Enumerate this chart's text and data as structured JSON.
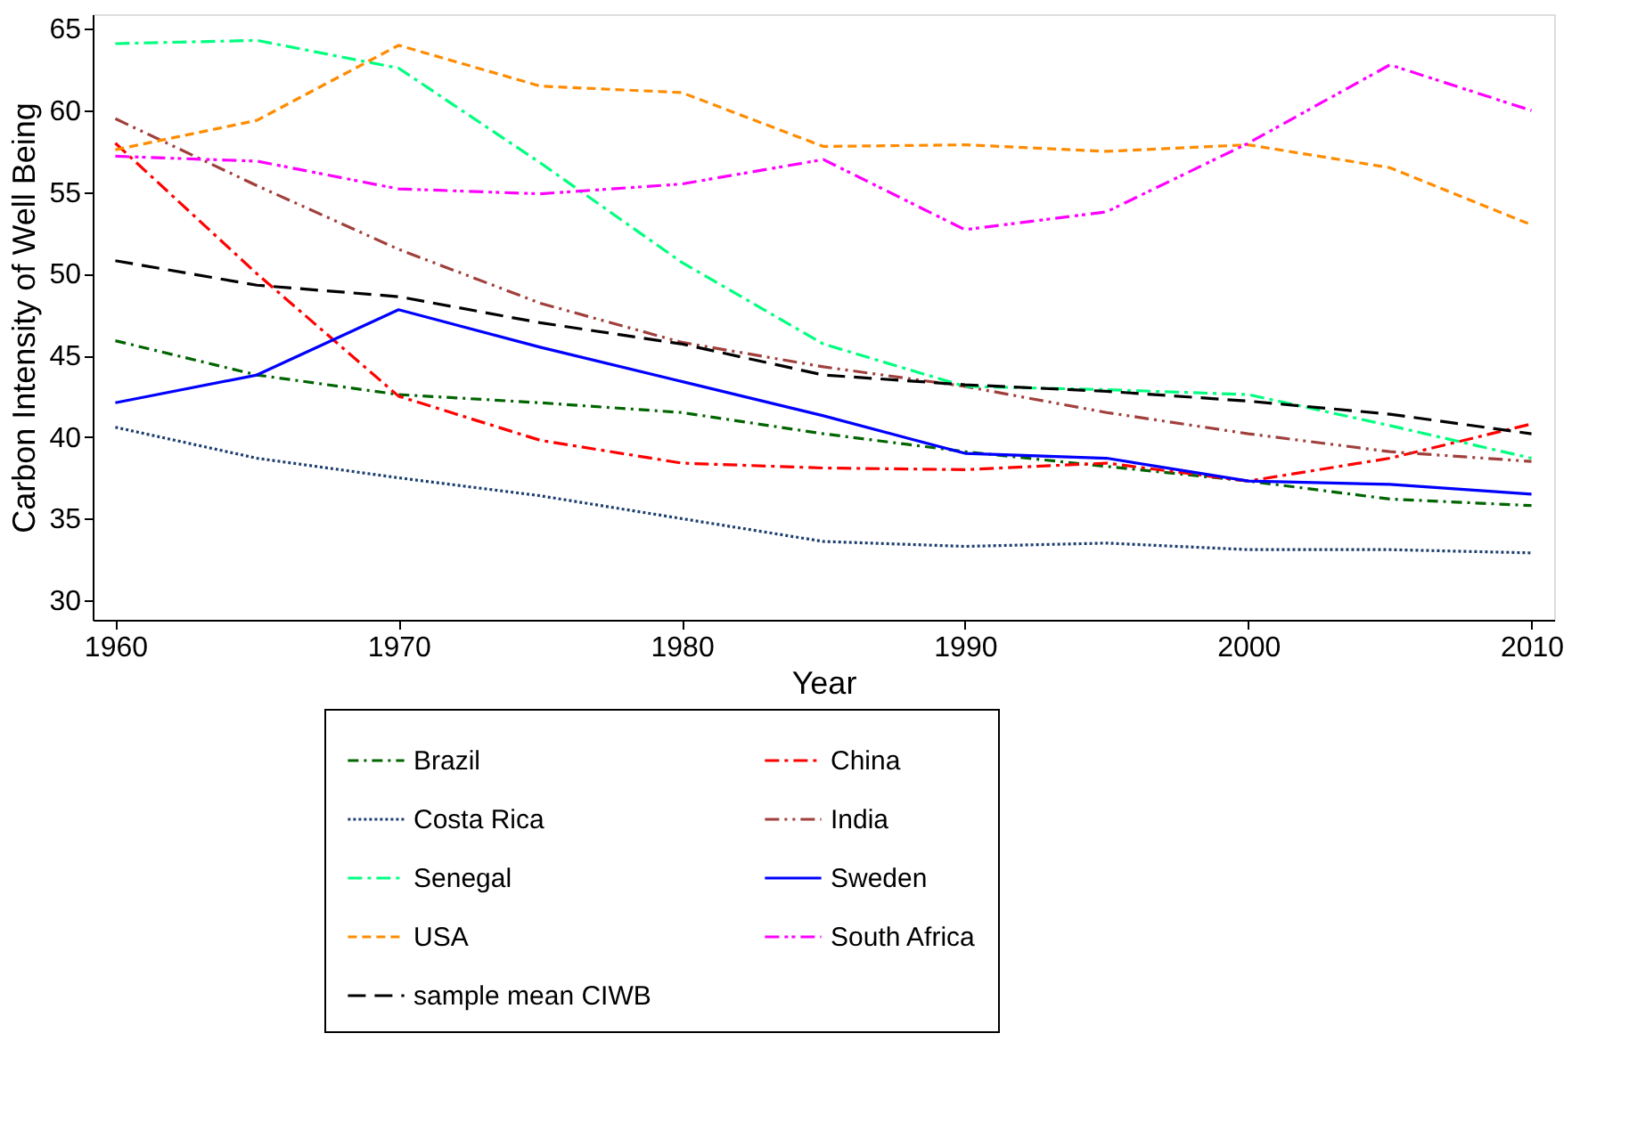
{
  "chart_data": {
    "type": "line",
    "xlabel": "Year",
    "ylabel": "Carbon Intensity of Well Being",
    "x": [
      1960,
      1965,
      1970,
      1975,
      1980,
      1985,
      1990,
      1995,
      2000,
      2005,
      2010
    ],
    "xlim": [
      1959.2,
      2010.8
    ],
    "xticks": [
      1960,
      1970,
      1980,
      1990,
      2000,
      2010
    ],
    "ylim": [
      28.8,
      65.9
    ],
    "yticks": [
      30,
      35,
      40,
      45,
      50,
      55,
      60,
      65
    ],
    "grid": false,
    "legend": "bottom",
    "marker": "none",
    "series": [
      {
        "name": "Brazil",
        "color": "#006400",
        "line_style": "dashdot",
        "values": [
          45.9,
          43.8,
          42.6,
          42.1,
          41.5,
          40.2,
          39.1,
          38.2,
          37.3,
          36.2,
          35.8
        ]
      },
      {
        "name": "China",
        "color": "#ff0000",
        "line_style": "longdashdot",
        "values": [
          58.0,
          50.0,
          42.5,
          39.8,
          38.4,
          38.1,
          38.0,
          38.4,
          37.3,
          38.7,
          40.8
        ]
      },
      {
        "name": "Costa Rica",
        "color": "#1c3f6e",
        "line_style": "dotted",
        "values": [
          40.6,
          38.7,
          37.5,
          36.4,
          35.0,
          33.6,
          33.3,
          33.5,
          33.1,
          33.1,
          32.9
        ]
      },
      {
        "name": "India",
        "color": "#a0403c",
        "line_style": "dashdotdot",
        "values": [
          59.5,
          55.4,
          51.5,
          48.2,
          45.8,
          44.3,
          43.1,
          41.5,
          40.2,
          39.1,
          38.5
        ]
      },
      {
        "name": "Senegal",
        "color": "#00ff7f",
        "line_style": "longdashdot",
        "values": [
          64.1,
          64.3,
          62.6,
          56.8,
          50.7,
          45.7,
          43.1,
          42.9,
          42.6,
          40.7,
          38.7
        ]
      },
      {
        "name": "Sweden",
        "color": "#0000ff",
        "line_style": "solid",
        "values": [
          42.1,
          43.8,
          47.8,
          45.5,
          43.4,
          41.3,
          39.0,
          38.7,
          37.3,
          37.1,
          36.5
        ]
      },
      {
        "name": "USA",
        "color": "#ff8c00",
        "line_style": "dashed",
        "values": [
          57.6,
          59.4,
          64.0,
          61.5,
          61.1,
          57.8,
          57.9,
          57.5,
          57.9,
          56.5,
          53.0
        ]
      },
      {
        "name": "South Africa",
        "color": "#ff00ff",
        "line_style": "longdashdotdot",
        "values": [
          57.2,
          56.9,
          55.2,
          54.9,
          55.5,
          57.0,
          52.7,
          53.8,
          58.0,
          62.8,
          60.0
        ]
      },
      {
        "name": "sample mean CIWB",
        "color": "#000000",
        "line_style": "longdash",
        "values": [
          50.8,
          49.3,
          48.6,
          47.0,
          45.7,
          43.8,
          43.2,
          42.8,
          42.2,
          41.4,
          40.2
        ]
      }
    ]
  }
}
